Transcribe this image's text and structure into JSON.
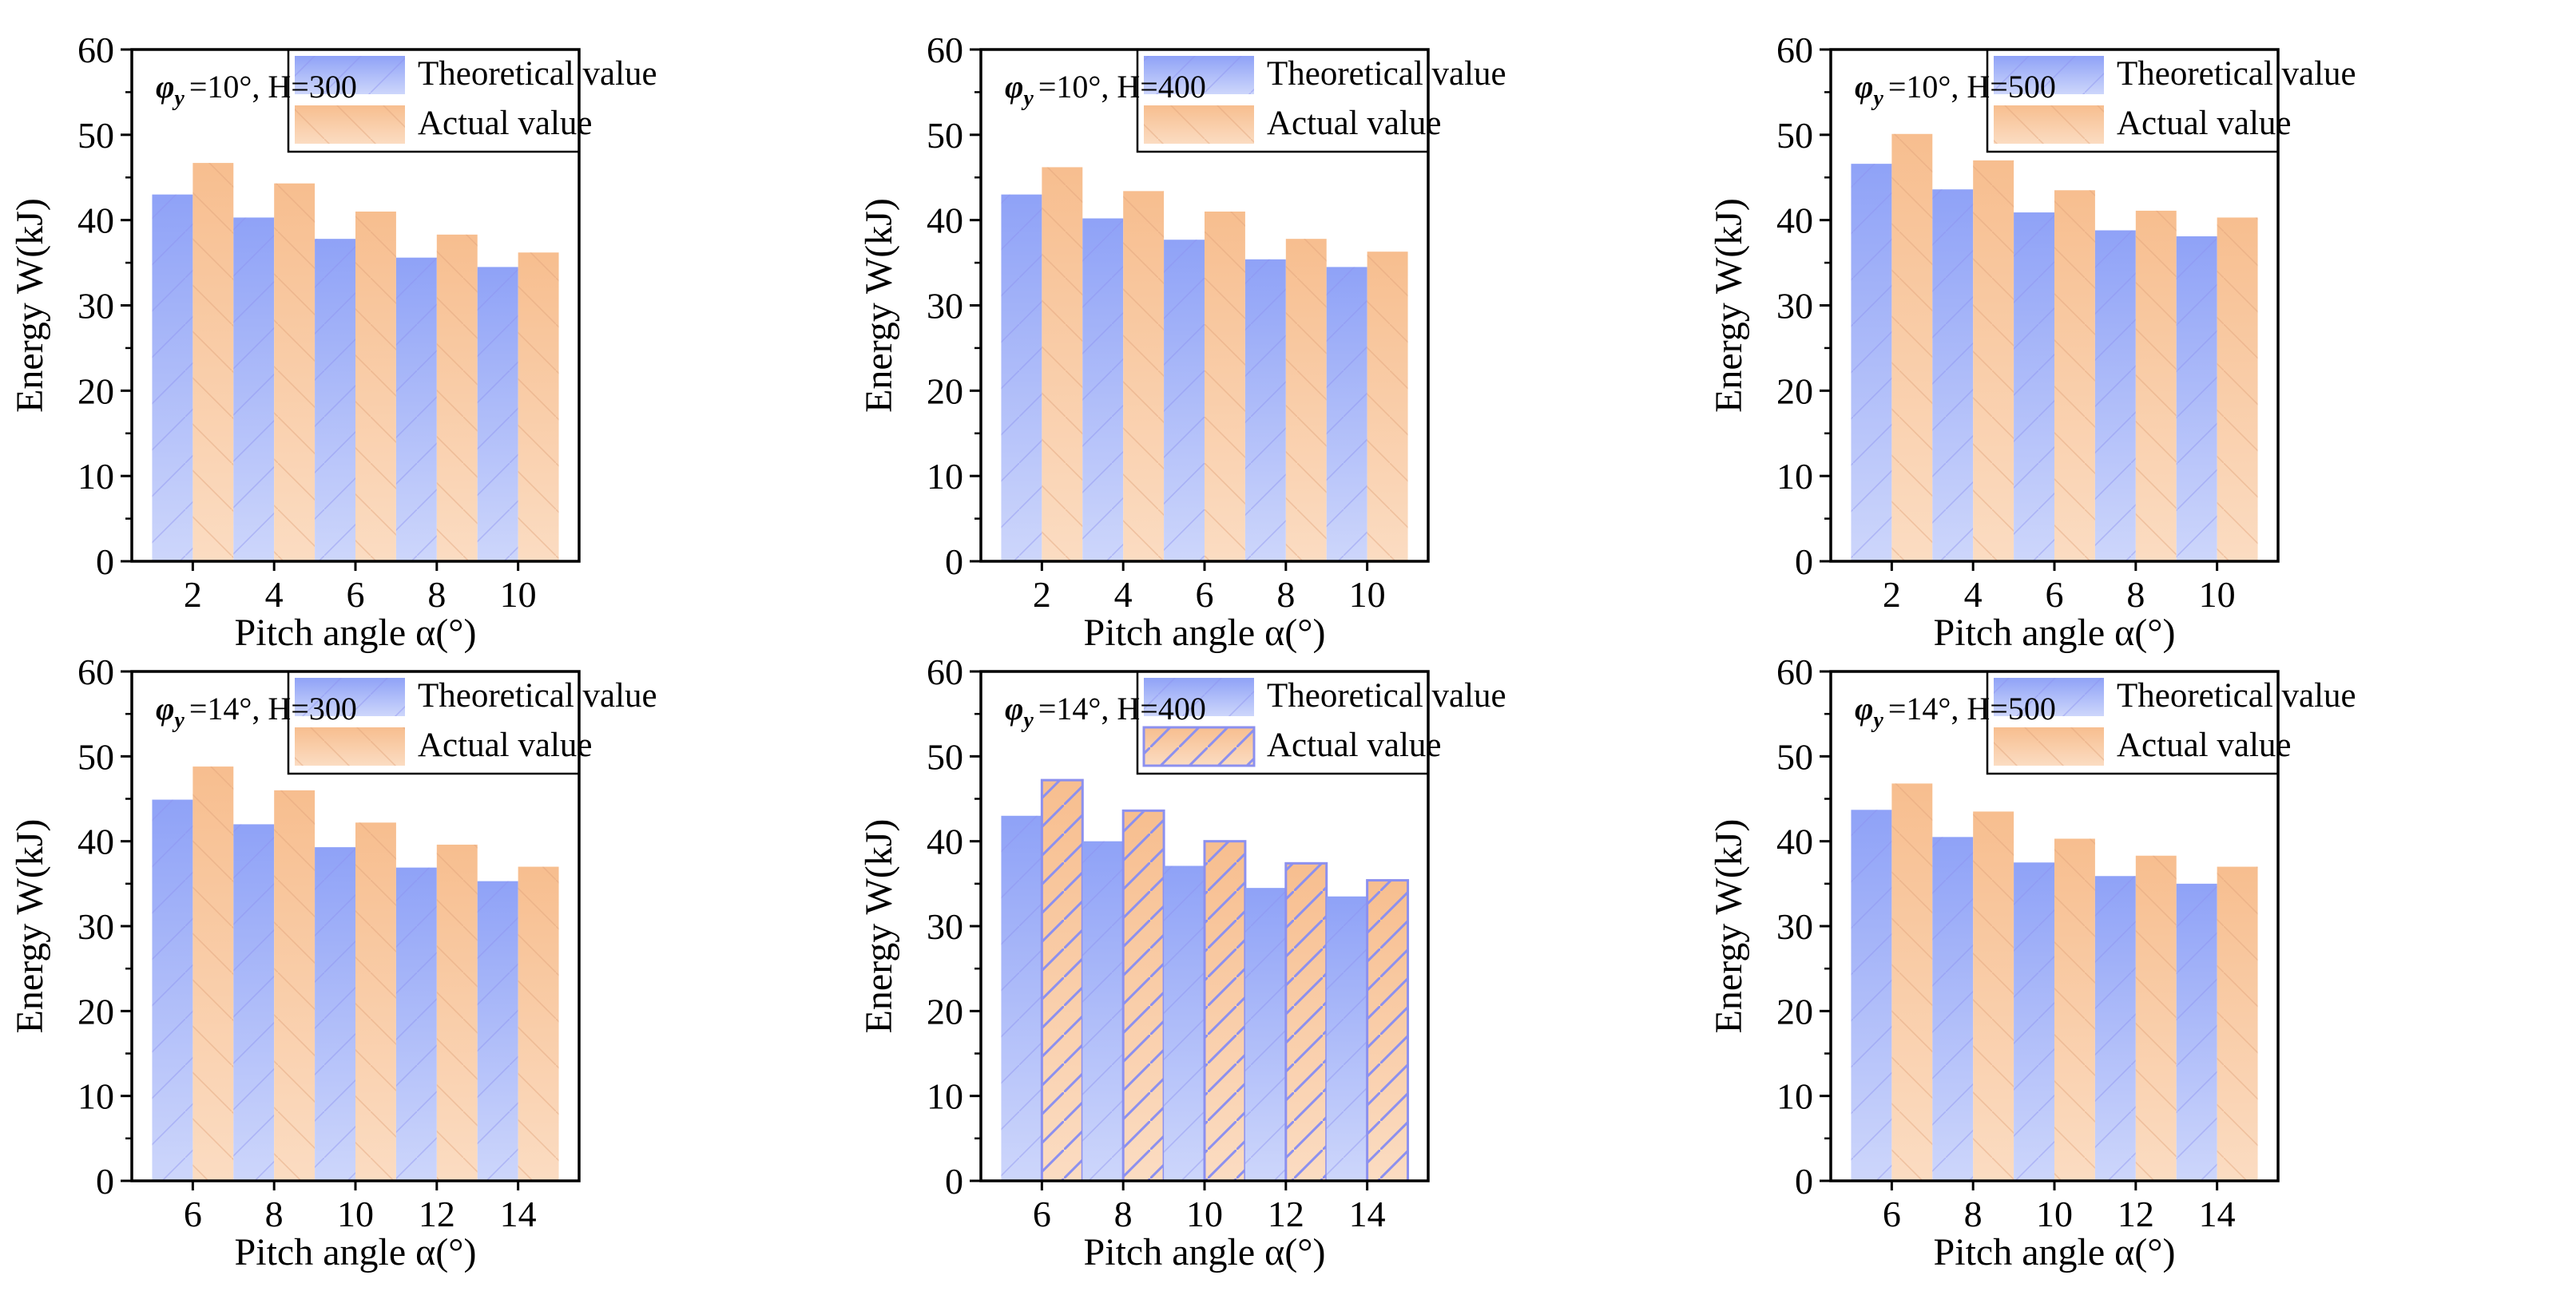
{
  "chart_data": [
    {
      "type": "bar",
      "title": "=10°, H=300",
      "title_symbol": "φ",
      "title_symbol_sub": "y",
      "categories": [
        "2",
        "4",
        "6",
        "8",
        "10"
      ],
      "series": [
        {
          "name": "Theoretical value",
          "values": [
            43.0,
            40.3,
            37.8,
            35.6,
            34.5
          ]
        },
        {
          "name": "Actual value",
          "values": [
            46.7,
            44.3,
            41.0,
            38.3,
            36.2
          ]
        }
      ],
      "xlabel": "Pitch angle α(°)",
      "ylabel": "Energy W(kJ)",
      "ylim": [
        0,
        60
      ],
      "yticks": [
        "0",
        "10",
        "20",
        "30",
        "40",
        "50",
        "60"
      ],
      "legend_position": "top-right"
    },
    {
      "type": "bar",
      "title": "=10°, H=400",
      "title_symbol": "φ",
      "title_symbol_sub": "y",
      "categories": [
        "2",
        "4",
        "6",
        "8",
        "10"
      ],
      "series": [
        {
          "name": "Theoretical value",
          "values": [
            43.0,
            40.2,
            37.7,
            35.4,
            34.5
          ]
        },
        {
          "name": "Actual value",
          "values": [
            46.2,
            43.4,
            41.0,
            37.8,
            36.3
          ]
        }
      ],
      "xlabel": "Pitch angle α(°)",
      "ylabel": "Energy W(kJ)",
      "ylim": [
        0,
        60
      ],
      "yticks": [
        "0",
        "10",
        "20",
        "30",
        "40",
        "50",
        "60"
      ],
      "legend_position": "top-right"
    },
    {
      "type": "bar",
      "title": "=10°, H=500",
      "title_symbol": "φ",
      "title_symbol_sub": "y",
      "categories": [
        "2",
        "4",
        "6",
        "8",
        "10"
      ],
      "series": [
        {
          "name": "Theoretical value",
          "values": [
            46.6,
            43.6,
            40.9,
            38.8,
            38.1
          ]
        },
        {
          "name": "Actual value",
          "values": [
            50.1,
            47.0,
            43.5,
            41.1,
            40.3
          ]
        }
      ],
      "xlabel": "Pitch angle α(°)",
      "ylabel": "Energy W(kJ)",
      "ylim": [
        0,
        60
      ],
      "yticks": [
        "0",
        "10",
        "20",
        "30",
        "40",
        "50",
        "60"
      ],
      "legend_position": "top-right"
    },
    {
      "type": "bar",
      "title": "=14°, H=300",
      "title_symbol": "φ",
      "title_symbol_sub": "y",
      "categories": [
        "6",
        "8",
        "10",
        "12",
        "14"
      ],
      "series": [
        {
          "name": "Theoretical value",
          "values": [
            44.9,
            42.0,
            39.3,
            36.9,
            35.3
          ]
        },
        {
          "name": "Actual value",
          "values": [
            48.8,
            46.0,
            42.2,
            39.6,
            37.0
          ]
        }
      ],
      "xlabel": "Pitch angle α(°)",
      "ylabel": "Energy W(kJ)",
      "ylim": [
        0,
        60
      ],
      "yticks": [
        "0",
        "10",
        "20",
        "30",
        "40",
        "50",
        "60"
      ],
      "legend_position": "top-right"
    },
    {
      "type": "bar",
      "title": "=14°, H=400",
      "title_symbol": "φ",
      "title_symbol_sub": "y",
      "categories": [
        "6",
        "8",
        "10",
        "12",
        "14"
      ],
      "series": [
        {
          "name": "Theoretical value",
          "values": [
            43.0,
            40.0,
            37.1,
            34.5,
            33.5
          ]
        },
        {
          "name": "Actual value",
          "values": [
            47.2,
            43.6,
            40.0,
            37.4,
            35.4
          ]
        }
      ],
      "xlabel": "Pitch angle α(°)",
      "ylabel": "Energy W(kJ)",
      "ylim": [
        0,
        60
      ],
      "yticks": [
        "0",
        "10",
        "20",
        "30",
        "40",
        "50",
        "60"
      ],
      "legend_position": "top-right"
    },
    {
      "type": "bar",
      "title": "=14°, H=500",
      "title_symbol": "φ",
      "title_symbol_sub": "y",
      "categories": [
        "6",
        "8",
        "10",
        "12",
        "14"
      ],
      "series": [
        {
          "name": "Theoretical value",
          "values": [
            43.7,
            40.5,
            37.5,
            35.9,
            35.0
          ]
        },
        {
          "name": "Actual value",
          "values": [
            46.8,
            43.5,
            40.3,
            38.3,
            37.0
          ]
        }
      ],
      "xlabel": "Pitch angle α(°)",
      "ylabel": "Energy W(kJ)",
      "ylim": [
        0,
        60
      ],
      "yticks": [
        "0",
        "10",
        "20",
        "30",
        "40",
        "50",
        "60"
      ],
      "legend_position": "top-right"
    }
  ],
  "colors": {
    "theoretical_top": "#8fa2f7",
    "theoretical_bottom": "#cdd6fb",
    "actual_top": "#f7be8f",
    "actual_bottom": "#fbdcc2",
    "hatch": "#8c90ef"
  }
}
